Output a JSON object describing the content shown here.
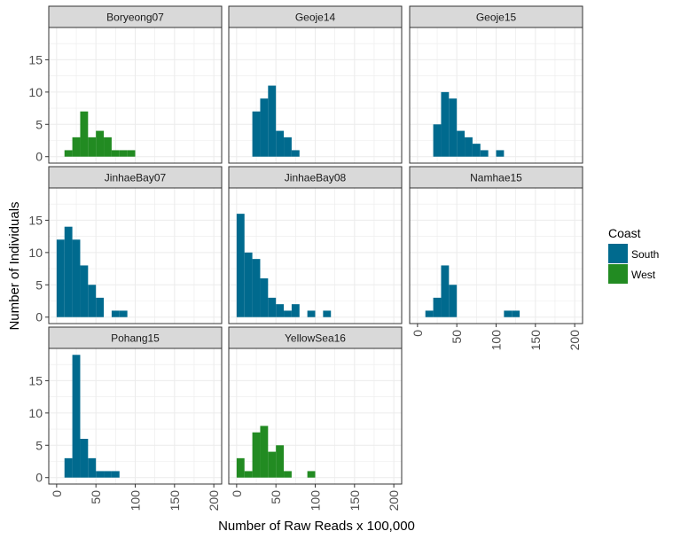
{
  "chart_data": {
    "type": "bar",
    "subtype": "faceted-histogram",
    "xlabel": "Number of Raw Reads x 100,000",
    "ylabel": "Number of Individuals",
    "xlim": [
      -10,
      210
    ],
    "ylim": [
      -1,
      20
    ],
    "x_ticks": [
      0,
      50,
      100,
      150,
      200
    ],
    "y_ticks": [
      0,
      5,
      10,
      15
    ],
    "bin_width": 10,
    "grid": true,
    "legend": {
      "title": "Coast",
      "position": "right",
      "entries": [
        {
          "label": "South",
          "color": "#006A8E"
        },
        {
          "label": "West",
          "color": "#228B22"
        }
      ]
    },
    "panels": [
      {
        "name": "Boryeong07",
        "coast": "West",
        "bins": [
          [
            10,
            1
          ],
          [
            20,
            3
          ],
          [
            30,
            7
          ],
          [
            40,
            3
          ],
          [
            50,
            4
          ],
          [
            60,
            3
          ],
          [
            70,
            1
          ],
          [
            80,
            1
          ],
          [
            90,
            1
          ]
        ]
      },
      {
        "name": "Geoje14",
        "coast": "South",
        "bins": [
          [
            20,
            7
          ],
          [
            30,
            9
          ],
          [
            40,
            11
          ],
          [
            50,
            4
          ],
          [
            60,
            3
          ],
          [
            70,
            1
          ]
        ]
      },
      {
        "name": "Geoje15",
        "coast": "South",
        "bins": [
          [
            20,
            5
          ],
          [
            30,
            10
          ],
          [
            40,
            9
          ],
          [
            50,
            4
          ],
          [
            60,
            3
          ],
          [
            70,
            2
          ],
          [
            80,
            1
          ],
          [
            100,
            1
          ]
        ]
      },
      {
        "name": "JinhaeBay07",
        "coast": "South",
        "bins": [
          [
            0,
            12
          ],
          [
            10,
            14
          ],
          [
            20,
            12
          ],
          [
            30,
            8
          ],
          [
            40,
            5
          ],
          [
            50,
            3
          ],
          [
            70,
            1
          ],
          [
            80,
            1
          ]
        ]
      },
      {
        "name": "JinhaeBay08",
        "coast": "South",
        "bins": [
          [
            0,
            16
          ],
          [
            10,
            10
          ],
          [
            20,
            9
          ],
          [
            30,
            6
          ],
          [
            40,
            3
          ],
          [
            50,
            2
          ],
          [
            60,
            1
          ],
          [
            70,
            2
          ],
          [
            90,
            1
          ],
          [
            110,
            1
          ]
        ]
      },
      {
        "name": "Namhae15",
        "coast": "South",
        "bins": [
          [
            10,
            1
          ],
          [
            20,
            3
          ],
          [
            30,
            8
          ],
          [
            40,
            5
          ],
          [
            110,
            1
          ],
          [
            120,
            1
          ]
        ]
      },
      {
        "name": "Pohang15",
        "coast": "South",
        "bins": [
          [
            10,
            3
          ],
          [
            20,
            19
          ],
          [
            30,
            6
          ],
          [
            40,
            3
          ],
          [
            50,
            1
          ],
          [
            60,
            1
          ],
          [
            70,
            1
          ]
        ]
      },
      {
        "name": "YellowSea16",
        "coast": "West",
        "bins": [
          [
            0,
            3
          ],
          [
            10,
            1
          ],
          [
            20,
            7
          ],
          [
            30,
            8
          ],
          [
            40,
            4
          ],
          [
            50,
            5
          ],
          [
            60,
            1
          ],
          [
            90,
            1
          ]
        ]
      }
    ]
  }
}
